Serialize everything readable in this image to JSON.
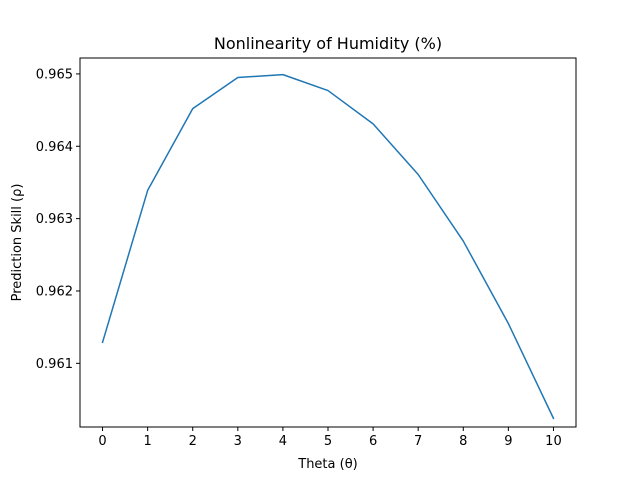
{
  "chart_data": {
    "type": "line",
    "title": "Nonlinearity of Humidity (%)",
    "xlabel": "Theta (θ)",
    "ylabel": "Prediction Skill (ρ)",
    "x": [
      0,
      1,
      2,
      3,
      4,
      5,
      6,
      7,
      8,
      9,
      10
    ],
    "series": [
      {
        "values": [
          0.96129,
          0.96339,
          0.96452,
          0.96495,
          0.96499,
          0.96477,
          0.96431,
          0.96361,
          0.96269,
          0.96155,
          0.96024
        ]
      }
    ],
    "xlim": [
      -0.5,
      10.5
    ],
    "ylim": [
      0.96012,
      0.96522
    ],
    "xticks": [
      "0",
      "1",
      "2",
      "3",
      "4",
      "5",
      "6",
      "7",
      "8",
      "9",
      "10"
    ],
    "yticks": [
      "0.961",
      "0.962",
      "0.963",
      "0.964",
      "0.965"
    ],
    "grid": false,
    "line_color": "#1f77b4"
  }
}
